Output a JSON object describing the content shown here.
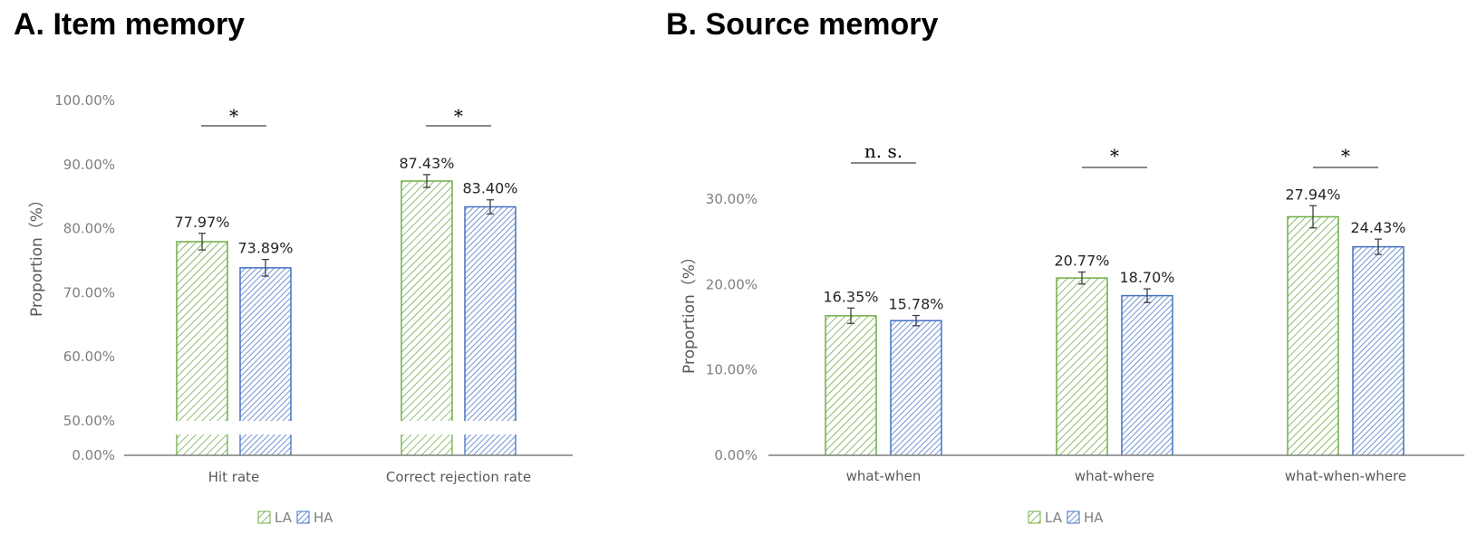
{
  "chart_data": [
    {
      "type": "bar",
      "title": "A. Item memory",
      "ylabel": "Proportion（%）",
      "xlabel": "",
      "y_axis": "broken",
      "y_ticks": [
        "0.00%",
        "50.00%",
        "60.00%",
        "70.00%",
        "80.00%",
        "90.00%",
        "100.00%"
      ],
      "categories": [
        "Hit rate",
        "Correct rejection rate"
      ],
      "series": [
        {
          "name": "LA",
          "color": "#70ad47",
          "pattern": "diagonal-hatch",
          "values": [
            77.97,
            87.43
          ],
          "labels": [
            "77.97%",
            "87.43%"
          ],
          "errors": [
            1.3,
            1.0
          ]
        },
        {
          "name": "HA",
          "color": "#4472c4",
          "pattern": "dense-diagonal-hatch",
          "values": [
            73.89,
            83.4
          ],
          "labels": [
            "73.89%",
            "83.40%"
          ],
          "errors": [
            1.3,
            1.1
          ]
        }
      ],
      "significance": [
        "*",
        "*"
      ],
      "legend_position": "bottom"
    },
    {
      "type": "bar",
      "title": "B. Source memory",
      "ylabel": "Proportion（%）",
      "xlabel": "",
      "ylim": [
        0,
        30
      ],
      "y_ticks": [
        "0.00%",
        "10.00%",
        "20.00%",
        "30.00%"
      ],
      "categories": [
        "what-when",
        "what-where",
        "what-when-where"
      ],
      "series": [
        {
          "name": "LA",
          "color": "#70ad47",
          "pattern": "diagonal-hatch",
          "values": [
            16.35,
            20.77,
            27.94
          ],
          "labels": [
            "16.35%",
            "20.77%",
            "27.94%"
          ],
          "errors": [
            0.9,
            0.7,
            1.3
          ]
        },
        {
          "name": "HA",
          "color": "#4472c4",
          "pattern": "dense-diagonal-hatch",
          "values": [
            15.78,
            18.7,
            24.43
          ],
          "labels": [
            "15.78%",
            "18.70%",
            "24.43%"
          ],
          "errors": [
            0.6,
            0.8,
            0.9
          ]
        }
      ],
      "significance": [
        "n. s.",
        "*",
        "*"
      ],
      "legend_position": "bottom"
    }
  ]
}
